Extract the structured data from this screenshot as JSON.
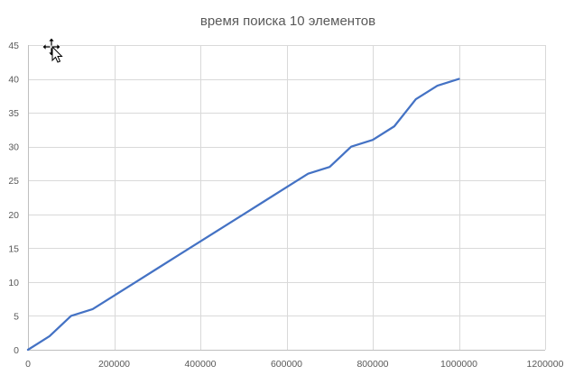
{
  "chart_data": {
    "type": "line",
    "title": "время поиска 10  элементов",
    "xlabel": "",
    "ylabel": "",
    "xlim": [
      0,
      1200000
    ],
    "ylim": [
      0,
      45
    ],
    "x_ticks": [
      0,
      200000,
      400000,
      600000,
      800000,
      1000000,
      1200000
    ],
    "x_tick_labels": [
      "0",
      "200000",
      "400000",
      "600000",
      "800000",
      "1000000",
      "1200000"
    ],
    "y_ticks": [
      0,
      5,
      10,
      15,
      20,
      25,
      30,
      35,
      40,
      45
    ],
    "y_tick_labels": [
      "0",
      "5",
      "10",
      "15",
      "20",
      "25",
      "30",
      "35",
      "40",
      "45"
    ],
    "grid": true,
    "legend": "none",
    "series": [
      {
        "color": "#4472c4",
        "x": [
          0,
          50000,
          100000,
          150000,
          200000,
          250000,
          300000,
          350000,
          400000,
          450000,
          500000,
          550000,
          600000,
          650000,
          700000,
          750000,
          800000,
          850000,
          900000,
          950000,
          1000000
        ],
        "y": [
          0,
          2,
          5,
          6,
          8,
          10,
          12,
          14,
          16,
          18,
          20,
          22,
          24,
          26,
          27,
          30,
          31,
          33,
          37,
          39,
          40
        ]
      }
    ]
  },
  "colors": {
    "series": "#4472c4",
    "grid": "#d9d9d9",
    "text": "#595959"
  },
  "icons": {
    "cursor": "move-cursor-icon"
  }
}
